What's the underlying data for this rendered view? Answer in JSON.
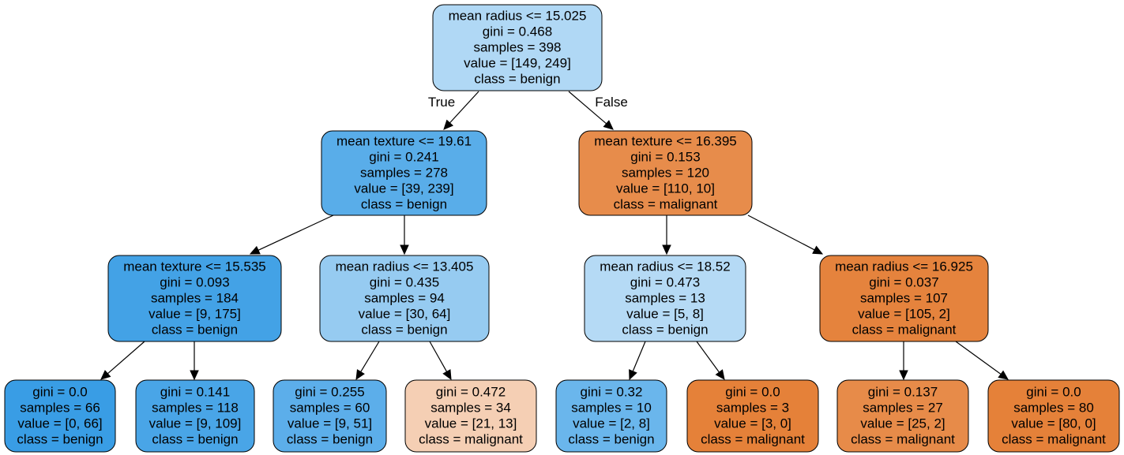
{
  "tree": {
    "nodes": [
      {
        "id": "n0",
        "lines": [
          "mean radius <= 15.025",
          "gini = 0.468",
          "samples = 398",
          "value = [149, 249]",
          "class = benign"
        ],
        "fill": "#b0d8f5"
      },
      {
        "id": "n1",
        "lines": [
          "mean texture <= 19.61",
          "gini = 0.241",
          "samples = 278",
          "value = [39, 239]",
          "class = benign"
        ],
        "fill": "#59ade9"
      },
      {
        "id": "n2",
        "lines": [
          "mean texture <= 16.395",
          "gini = 0.153",
          "samples = 120",
          "value = [110, 10]",
          "class = malignant"
        ],
        "fill": "#e78c4b"
      },
      {
        "id": "n3",
        "lines": [
          "mean texture <= 15.535",
          "gini = 0.093",
          "samples = 184",
          "value = [9, 175]",
          "class = benign"
        ],
        "fill": "#43a2e6"
      },
      {
        "id": "n4",
        "lines": [
          "mean radius <= 13.405",
          "gini = 0.435",
          "samples = 94",
          "value = [30, 64]",
          "class = benign"
        ],
        "fill": "#96cbf1"
      },
      {
        "id": "n5",
        "lines": [
          "mean radius <= 18.52",
          "gini = 0.473",
          "samples = 13",
          "value = [5, 8]",
          "class = benign"
        ],
        "fill": "#b5daf5"
      },
      {
        "id": "n6",
        "lines": [
          "mean radius <= 16.925",
          "gini = 0.037",
          "samples = 107",
          "value = [105, 2]",
          "class = malignant"
        ],
        "fill": "#e5833d"
      },
      {
        "id": "n7",
        "lines": [
          "gini = 0.0",
          "samples = 66",
          "value = [0, 66]",
          "class = benign"
        ],
        "fill": "#399de5"
      },
      {
        "id": "n8",
        "lines": [
          "gini = 0.141",
          "samples = 118",
          "value = [9, 109]",
          "class = benign"
        ],
        "fill": "#49a5e7"
      },
      {
        "id": "n9",
        "lines": [
          "gini = 0.255",
          "samples = 60",
          "value = [9, 51]",
          "class = benign"
        ],
        "fill": "#5caeea"
      },
      {
        "id": "n10",
        "lines": [
          "gini = 0.472",
          "samples = 34",
          "value = [21, 13]",
          "class = malignant"
        ],
        "fill": "#f5cfb4"
      },
      {
        "id": "n11",
        "lines": [
          "gini = 0.32",
          "samples = 10",
          "value = [2, 8]",
          "class = benign"
        ],
        "fill": "#6ab6ec"
      },
      {
        "id": "n12",
        "lines": [
          "gini = 0.0",
          "samples = 3",
          "value = [3, 0]",
          "class = malignant"
        ],
        "fill": "#e58139"
      },
      {
        "id": "n13",
        "lines": [
          "gini = 0.137",
          "samples = 27",
          "value = [25, 2]",
          "class = malignant"
        ],
        "fill": "#e78b49"
      },
      {
        "id": "n14",
        "lines": [
          "gini = 0.0",
          "samples = 80",
          "value = [80, 0]",
          "class = malignant"
        ],
        "fill": "#e58139"
      }
    ],
    "edges": [
      {
        "from": "n0",
        "to": "n1",
        "label": "True"
      },
      {
        "from": "n0",
        "to": "n2",
        "label": "False"
      },
      {
        "from": "n1",
        "to": "n3",
        "label": ""
      },
      {
        "from": "n1",
        "to": "n4",
        "label": ""
      },
      {
        "from": "n2",
        "to": "n5",
        "label": ""
      },
      {
        "from": "n2",
        "to": "n6",
        "label": ""
      },
      {
        "from": "n3",
        "to": "n7",
        "label": ""
      },
      {
        "from": "n3",
        "to": "n8",
        "label": ""
      },
      {
        "from": "n4",
        "to": "n9",
        "label": ""
      },
      {
        "from": "n4",
        "to": "n10",
        "label": ""
      },
      {
        "from": "n5",
        "to": "n11",
        "label": ""
      },
      {
        "from": "n5",
        "to": "n12",
        "label": ""
      },
      {
        "from": "n6",
        "to": "n13",
        "label": ""
      },
      {
        "from": "n6",
        "to": "n14",
        "label": ""
      }
    ]
  }
}
